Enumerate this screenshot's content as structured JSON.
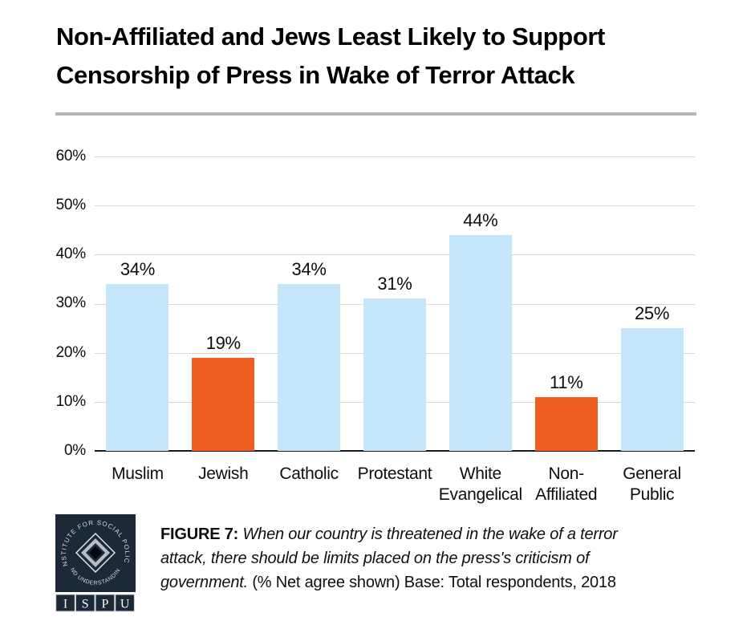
{
  "header": {
    "title_line1": "Non-Affiliated and Jews Least Likely to Support",
    "title_line2": "Censorship of Press in Wake of Terror Attack"
  },
  "chart_data": {
    "type": "bar",
    "title": "Non-Affiliated and Jews Least Likely to Support Censorship of Press in Wake of Terror Attack",
    "categories": [
      "Muslim",
      "Jewish",
      "Catholic",
      "Protestant",
      "White Evangelical",
      "Non-Affiliated",
      "General Public"
    ],
    "category_lines": [
      [
        "Muslim",
        ""
      ],
      [
        "Jewish",
        ""
      ],
      [
        "Catholic",
        ""
      ],
      [
        "Protestant",
        ""
      ],
      [
        "White",
        "Evangelical"
      ],
      [
        "Non-",
        "Affiliated"
      ],
      [
        "General",
        "Public"
      ]
    ],
    "values": [
      34,
      19,
      34,
      31,
      44,
      11,
      25
    ],
    "value_labels": [
      "34%",
      "19%",
      "34%",
      "31%",
      "44%",
      "11%",
      "25%"
    ],
    "bar_colors": [
      "#c4e6f9",
      "#ef5f22",
      "#c4e6f9",
      "#c4e6f9",
      "#c4e6f9",
      "#ef5f22",
      "#c4e6f9"
    ],
    "default_color": "#c4e6f9",
    "highlight_color": "#ef5f22",
    "highlight_indices": [
      1,
      5
    ],
    "y_axis": {
      "min": 0,
      "max": 60,
      "tick_values": [
        0,
        10,
        20,
        30,
        40,
        50,
        60
      ],
      "tick_labels": [
        "0%",
        "10%",
        "20%",
        "30%",
        "40%",
        "50%",
        "60%"
      ]
    },
    "grid": true,
    "legend": false,
    "xlabel": "",
    "ylabel": ""
  },
  "footer": {
    "figure_label": "FIGURE 7:",
    "caption_line1_italic": " When our country is threatened in the wake of a terror",
    "caption_line2_italic": "attack, there should be limits placed on the press's criticism of",
    "caption_line3_italic": "government.",
    "caption_line3_regular": " (% Net agree shown) Base: Total respondents, 2018",
    "logo": {
      "arc_top_text": "INSTITUTE FOR SOCIAL POLICY",
      "arc_bottom_text": "AND UNDERSTANDING",
      "acronym": [
        "I",
        "S",
        "P",
        "U"
      ]
    }
  },
  "colors": {
    "divider": "#b5b5b5",
    "grid_line": "#d9d9d9",
    "axis_line": "#1a1a1a",
    "logo_navy": "#1b2938",
    "bar_blue": "#c4e6f9",
    "bar_orange": "#ef5f22"
  }
}
